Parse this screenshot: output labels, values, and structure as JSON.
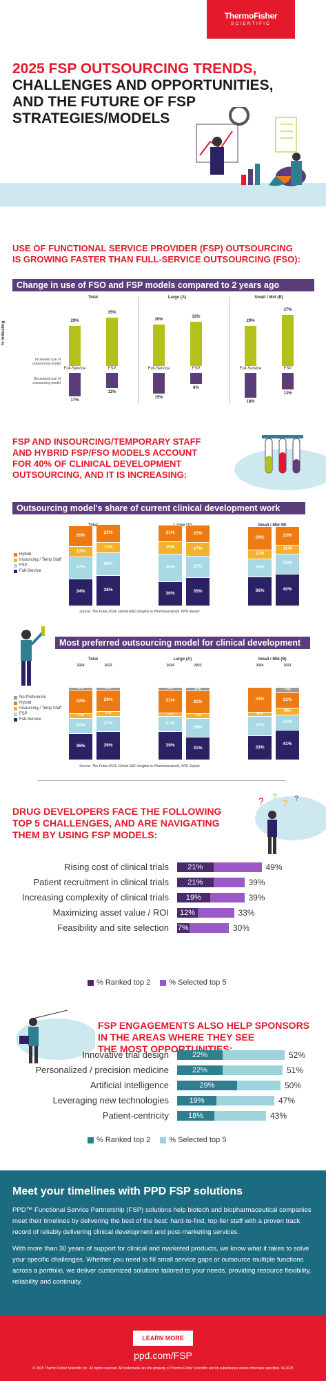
{
  "brand": {
    "line1": "ThermoFisher",
    "line2": "SCIENTIFIC"
  },
  "hero": {
    "title_line1": "2025 FSP OUTSOURCING TRENDS,",
    "title_line2": "CHALLENGES AND OPPORTUNITIES,",
    "title_line3": "AND THE FUTURE OF FSP",
    "title_line4": "STRATEGIES/MODELS"
  },
  "section1": {
    "heading_line1": "USE OF FUNCTIONAL SERVICE PROVIDER (FSP) OUTSOURCING",
    "heading_line2": "IS GROWING FASTER THAN FULL-SERVICE OUTSOURCING (FSO):",
    "banner": "Change in use of FSO and FSP models compared to 2 years ago",
    "y_axis": "% Indicating",
    "row_increased": "Increased use of outsourcing model",
    "row_decreased": "Decreased use of outsourcing model",
    "groups": [
      {
        "title": "Total",
        "fs_label": "Full-Service",
        "fsp_label": "FSP",
        "inc": [
          29,
          35
        ],
        "dec": [
          17,
          11
        ]
      },
      {
        "title": "Large (A)",
        "fs_label": "Full-Service",
        "fsp_label": "FSP",
        "inc": [
          30,
          32
        ],
        "dec": [
          15,
          8
        ]
      },
      {
        "title": "Small / Mid (B)",
        "fs_label": "Full-Service",
        "fsp_label": "FSP",
        "inc": [
          29,
          37
        ],
        "dec": [
          18,
          12
        ]
      }
    ]
  },
  "section2": {
    "heading_line1": "FSP AND INSOURCING/TEMPORARY STAFF",
    "heading_line2": "AND HYBRID FSP/FSO MODELS ACCOUNT",
    "heading_line3": "FOR 40% OF CLINICAL DEVELOPMENT",
    "heading_line4": "OUTSOURCING, AND IT IS INCREASING:",
    "banner": "Outsourcing model's share of current clinical development work",
    "legend": [
      "Hybrid",
      "Insourcing / Temp Staff",
      "FSP",
      "Full-Service"
    ],
    "source": "Source: The Pulse 2024, Global R&D Insights in Pharmaceuticals, PPD Report",
    "groups": [
      {
        "title": "Total",
        "years": [
          "2024",
          "2023"
        ],
        "stacks": [
          [
            34,
            27,
            13,
            26
          ],
          [
            38,
            28,
            13,
            23
          ]
        ]
      },
      {
        "title": "Large (A)",
        "years": [
          "2024",
          "2023"
        ],
        "stacks": [
          [
            30,
            35,
            15,
            21
          ],
          [
            35,
            27,
            17,
            22
          ]
        ]
      },
      {
        "title": "Small / Mid (B)",
        "years": [
          "2024",
          "2023"
        ],
        "stacks": [
          [
            36,
            23,
            11,
            29
          ],
          [
            40,
            25,
            11,
            23
          ]
        ]
      }
    ]
  },
  "section3": {
    "banner": "Most preferred outsourcing model for clinical development",
    "legend": [
      "No Preference",
      "Hybrid",
      "Insourcing / Temp Staff",
      "FSP",
      "Full-Service"
    ],
    "source": "Source: The Pulse 2024, Global R&D Insights in Pharmaceuticals, PPD Report",
    "groups": [
      {
        "title": "Total",
        "years": [
          "2024",
          "2023"
        ],
        "stacks": [
          [
            36,
            21,
            7,
            32,
            4
          ],
          [
            39,
            21,
            7,
            29,
            4
          ]
        ]
      },
      {
        "title": "Large (A)",
        "years": [
          "2024",
          "2023"
        ],
        "stacks": [
          [
            39,
            21,
            5,
            31,
            4
          ],
          [
            31,
            26,
            7,
            31,
            5
          ]
        ]
      },
      {
        "title": "Small / Mid (B)",
        "years": [
          "2024",
          "2023"
        ],
        "stacks": [
          [
            33,
            27,
            6,
            34,
            0
          ],
          [
            41,
            21,
            9,
            22,
            7
          ]
        ]
      }
    ]
  },
  "section4": {
    "heading_line1": "DRUG DEVELOPERS FACE THE FOLLOWING",
    "heading_line2": "TOP 5 CHALLENGES, AND ARE NAVIGATING",
    "heading_line3": "THEM BY USING FSP MODELS:",
    "legend_top2": "% Ranked top 2",
    "legend_top5": "% Selected top 5",
    "rows": [
      {
        "label": "Rising cost of clinical trials",
        "top2": 21,
        "top5": 49
      },
      {
        "label": "Patient recruitment in clinical trials",
        "top2": 21,
        "top5": 39
      },
      {
        "label": "Increasing complexity of clinical trials",
        "top2": 19,
        "top5": 39
      },
      {
        "label": "Maximizing asset value / ROI",
        "top2": 12,
        "top5": 33
      },
      {
        "label": "Feasibility and site selection",
        "top2": 7,
        "top5": 30
      }
    ]
  },
  "section5": {
    "heading_line1": "FSP ENGAGEMENTS ALSO HELP SPONSORS",
    "heading_line2": "IN THE AREAS WHERE THEY SEE",
    "heading_line3": "THE MOST OPPORTUNITIES:",
    "legend_top2": "% Ranked top 2",
    "legend_top5": "% Selected top 5",
    "rows": [
      {
        "label": "Innovative trial design",
        "top2": 22,
        "top5": 52
      },
      {
        "label": "Personalized / precision medicine",
        "top2": 22,
        "top5": 51
      },
      {
        "label": "Artificial intelligence",
        "top2": 29,
        "top5": 50
      },
      {
        "label": "Leveraging new technologies",
        "top2": 19,
        "top5": 47
      },
      {
        "label": "Patient-centricity",
        "top2": 18,
        "top5": 43
      }
    ]
  },
  "cta": {
    "title": "Meet your timelines with PPD FSP solutions",
    "p1": "PPD™ Functional Service Partnership (FSP) solutions help biotech and biopharmaceutical companies meet their timelines by delivering the best of the best: hard-to-find, top-tier staff with a proven track record of reliably delivering clinical development and post-marketing services.",
    "p2": "With more than 30 years of support for clinical and marketed products, we know what it takes to solve your specific challenges. Whether you need to fill small service gaps or outsource multiple functions across a portfolio, we deliver customized solutions tailored to your needs, providing resource flexibility, reliability and continuity."
  },
  "footer": {
    "button": "LEARN MORE",
    "url": "ppd.com/FSP",
    "copyright": "© 2025 Thermo Fisher Scientific Inc. All rights reserved. All trademarks are the property of Thermo Fisher Scientific and its subsidiaries unless otherwise specified. 04.2025"
  },
  "colors": {
    "red": "#e4192b",
    "purple": "#5b3d7a",
    "lime": "#b5c11b",
    "navy": "#2b2266",
    "orange": "#ee7a13",
    "amber": "#f4b12e",
    "lightblue": "#a8d8e3",
    "grey": "#999999",
    "teal": "#2f7f8e",
    "paleteal": "#9ed3dc",
    "violet": "#9b59c6",
    "darkpurple": "#4a2a6b"
  }
}
